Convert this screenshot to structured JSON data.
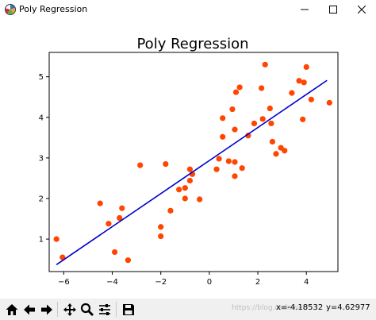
{
  "window": {
    "title": "Poly Regression",
    "minimize_icon": "minimize-icon",
    "maximize_icon": "maximize-icon",
    "close_icon": "close-icon"
  },
  "toolbar": {
    "buttons": [
      {
        "name": "home-button",
        "icon": "home-icon"
      },
      {
        "name": "back-button",
        "icon": "back-arrow-icon"
      },
      {
        "name": "forward-button",
        "icon": "forward-arrow-icon"
      },
      {
        "name": "pan-button",
        "icon": "move-icon"
      },
      {
        "name": "zoom-button",
        "icon": "zoom-icon"
      },
      {
        "name": "configure-subplots-button",
        "icon": "sliders-icon"
      },
      {
        "name": "save-button",
        "icon": "save-icon"
      }
    ],
    "watermark": "https://blog.csdn.net/...",
    "coord_x": "x=-4.18532",
    "coord_y": "y=4.62977"
  },
  "colors": {
    "points": "#ff4500",
    "line": "#0000cd",
    "axes": "#000000"
  },
  "chart_data": {
    "type": "scatter",
    "title": "Poly Regression",
    "xlabel": "",
    "ylabel": "",
    "xlim": [
      -6.6,
      5.3
    ],
    "ylim": [
      0.2,
      5.6
    ],
    "xticks": [
      -6,
      -4,
      -2,
      0,
      2,
      4
    ],
    "yticks": [
      1,
      2,
      3,
      4,
      5
    ],
    "grid": false,
    "points": [
      [
        -6.3,
        1.0
      ],
      [
        -6.05,
        0.55
      ],
      [
        -4.5,
        1.88
      ],
      [
        -4.15,
        1.38
      ],
      [
        -3.9,
        0.68
      ],
      [
        -3.7,
        1.52
      ],
      [
        -3.6,
        1.76
      ],
      [
        -3.35,
        0.48
      ],
      [
        -2.85,
        2.82
      ],
      [
        -2.0,
        1.07
      ],
      [
        -2.0,
        1.3
      ],
      [
        -1.8,
        2.85
      ],
      [
        -1.6,
        1.7
      ],
      [
        -1.25,
        2.22
      ],
      [
        -1.0,
        2.0
      ],
      [
        -1.0,
        2.26
      ],
      [
        -0.8,
        2.44
      ],
      [
        -0.8,
        2.72
      ],
      [
        -0.7,
        2.6
      ],
      [
        -0.4,
        1.98
      ],
      [
        0.3,
        2.72
      ],
      [
        0.4,
        2.98
      ],
      [
        0.55,
        3.52
      ],
      [
        0.55,
        3.98
      ],
      [
        0.8,
        2.92
      ],
      [
        0.95,
        4.2
      ],
      [
        1.05,
        2.55
      ],
      [
        1.05,
        2.9
      ],
      [
        1.05,
        3.7
      ],
      [
        1.1,
        4.62
      ],
      [
        1.25,
        4.74
      ],
      [
        1.35,
        2.75
      ],
      [
        1.6,
        3.55
      ],
      [
        1.85,
        3.85
      ],
      [
        2.15,
        4.72
      ],
      [
        2.2,
        3.96
      ],
      [
        2.3,
        5.3
      ],
      [
        2.5,
        4.22
      ],
      [
        2.55,
        3.85
      ],
      [
        2.6,
        3.4
      ],
      [
        2.75,
        3.1
      ],
      [
        2.95,
        3.25
      ],
      [
        3.1,
        3.18
      ],
      [
        3.4,
        4.6
      ],
      [
        3.7,
        4.9
      ],
      [
        3.85,
        3.95
      ],
      [
        3.9,
        4.86
      ],
      [
        4.0,
        5.24
      ],
      [
        4.2,
        4.44
      ],
      [
        4.95,
        4.36
      ]
    ],
    "fit_line": {
      "x": [
        -6.3,
        4.85
      ],
      "y": [
        0.37,
        4.91
      ]
    }
  }
}
